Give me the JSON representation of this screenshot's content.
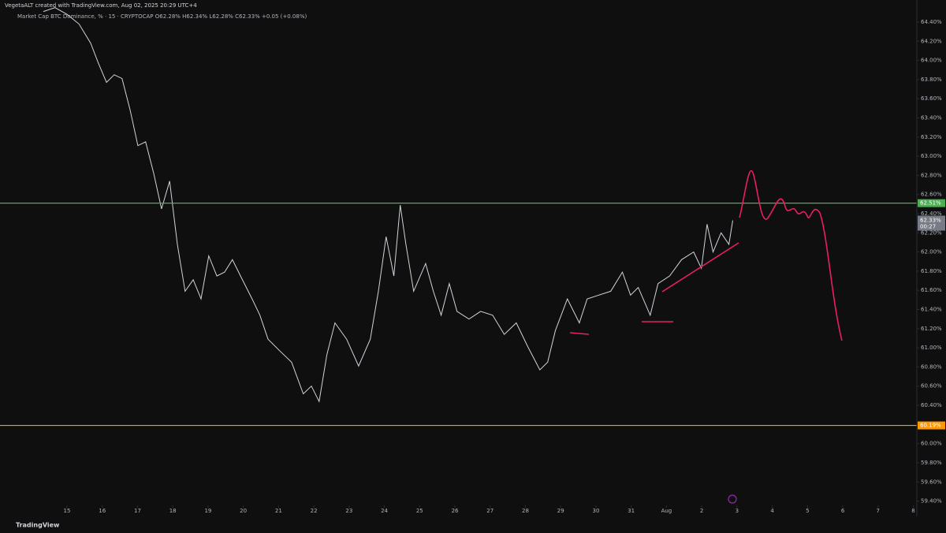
{
  "header": {
    "credit": "VegetaALT created with TradingView.com, Aug 02, 2025 20:29 UTC+4",
    "legend": "Market Cap BTC Dominance, % · 15 · CRYPTOCAP  O62.28% H62.34% L62.28% C62.33% +0.05 (+0.08%)"
  },
  "footer": {
    "brand": "TradingView"
  },
  "chart_data": {
    "type": "line",
    "series": [
      {
        "name": "Market Cap BTC Dominance, %",
        "color": "#d1d4dc",
        "x": [
          -0.67,
          -0.34,
          0,
          0.34,
          0.67,
          0.89,
          1.12,
          1.34,
          1.56,
          1.79,
          2.01,
          2.23,
          2.46,
          2.68,
          2.91,
          3.13,
          3.35,
          3.58,
          3.8,
          4.02,
          4.25,
          4.47,
          4.69,
          4.92,
          5.25,
          5.47,
          5.7,
          6.03,
          6.37,
          6.7,
          6.93,
          7.15,
          7.37,
          7.6,
          7.93,
          8.27,
          8.6,
          8.83,
          9.05,
          9.27,
          9.45,
          9.61,
          9.83,
          10.17,
          10.39,
          10.61,
          10.84,
          11.06,
          11.4,
          11.73,
          12.07,
          12.4,
          12.74,
          13.07,
          13.41,
          13.63,
          13.85,
          14.19,
          14.53,
          14.75,
          15.08,
          15.42,
          15.75,
          15.98,
          16.2,
          16.54,
          16.76,
          17.09,
          17.43,
          17.77,
          17.99,
          18.15,
          18.32,
          18.55,
          18.77,
          18.88
        ],
        "values": [
          64.51,
          64.55,
          64.48,
          64.38,
          64.18,
          63.97,
          63.77,
          63.85,
          63.81,
          63.48,
          63.11,
          63.15,
          62.82,
          62.45,
          62.74,
          62.08,
          61.59,
          61.71,
          61.51,
          61.96,
          61.75,
          61.79,
          61.92,
          61.75,
          61.51,
          61.34,
          61.09,
          60.97,
          60.85,
          60.52,
          60.6,
          60.44,
          60.93,
          61.26,
          61.09,
          60.81,
          61.09,
          61.59,
          62.16,
          61.75,
          62.49,
          62.08,
          61.59,
          61.88,
          61.59,
          61.34,
          61.67,
          61.38,
          61.3,
          61.38,
          61.34,
          61.14,
          61.26,
          61.01,
          60.77,
          60.85,
          61.18,
          61.51,
          61.26,
          61.51,
          61.55,
          61.59,
          61.79,
          61.55,
          61.63,
          61.34,
          61.67,
          61.75,
          61.92,
          62.0,
          61.83,
          62.29,
          62.0,
          62.2,
          62.08,
          62.33
        ]
      }
    ],
    "levels": [
      {
        "value": 62.51,
        "label": "62.51%",
        "color": "#4caf50"
      },
      {
        "value": 60.19,
        "label": "60.19%",
        "color": "#ff9800"
      }
    ],
    "last_price": {
      "value": 62.33,
      "label": "62.33%",
      "countdown": "00:27"
    },
    "xlim": [
      -1.9,
      24.1
    ],
    "xticks": [
      {
        "value": 0,
        "label": "15"
      },
      {
        "value": 1,
        "label": "16"
      },
      {
        "value": 2,
        "label": "17"
      },
      {
        "value": 3,
        "label": "18"
      },
      {
        "value": 4,
        "label": "19"
      },
      {
        "value": 5,
        "label": "20"
      },
      {
        "value": 6,
        "label": "21"
      },
      {
        "value": 7,
        "label": "22"
      },
      {
        "value": 8,
        "label": "23"
      },
      {
        "value": 9,
        "label": "24"
      },
      {
        "value": 10,
        "label": "25"
      },
      {
        "value": 11,
        "label": "26"
      },
      {
        "value": 12,
        "label": "27"
      },
      {
        "value": 13,
        "label": "28"
      },
      {
        "value": 14,
        "label": "29"
      },
      {
        "value": 15,
        "label": "30"
      },
      {
        "value": 16,
        "label": "31"
      },
      {
        "value": 17,
        "label": "Aug"
      },
      {
        "value": 18,
        "label": "2"
      },
      {
        "value": 19,
        "label": "3"
      },
      {
        "value": 20,
        "label": "4"
      },
      {
        "value": 21,
        "label": "5"
      },
      {
        "value": 22,
        "label": "6"
      },
      {
        "value": 23,
        "label": "7"
      },
      {
        "value": 24,
        "label": "8"
      }
    ],
    "ylim": [
      59.24,
      64.63
    ],
    "yticks": [
      {
        "value": 59.4,
        "label": "59.40%"
      },
      {
        "value": 59.6,
        "label": "59.60%"
      },
      {
        "value": 59.8,
        "label": "59.80%"
      },
      {
        "value": 60.0,
        "label": "60.00%"
      },
      {
        "value": 60.2,
        "label": "60.20%"
      },
      {
        "value": 60.4,
        "label": "60.40%"
      },
      {
        "value": 60.6,
        "label": "60.60%"
      },
      {
        "value": 60.8,
        "label": "60.80%"
      },
      {
        "value": 61.0,
        "label": "61.00%"
      },
      {
        "value": 61.2,
        "label": "61.20%"
      },
      {
        "value": 61.4,
        "label": "61.40%"
      },
      {
        "value": 61.6,
        "label": "61.60%"
      },
      {
        "value": 61.8,
        "label": "61.80%"
      },
      {
        "value": 62.0,
        "label": "62.00%"
      },
      {
        "value": 62.2,
        "label": "62.20%"
      },
      {
        "value": 62.4,
        "label": "62.40%"
      },
      {
        "value": 62.6,
        "label": "62.60%"
      },
      {
        "value": 62.8,
        "label": "62.80%"
      },
      {
        "value": 63.0,
        "label": "63.00%"
      },
      {
        "value": 63.2,
        "label": "63.20%"
      },
      {
        "value": 63.4,
        "label": "63.40%"
      },
      {
        "value": 63.6,
        "label": "63.60%"
      },
      {
        "value": 63.8,
        "label": "63.80%"
      },
      {
        "value": 64.0,
        "label": "64.00%"
      },
      {
        "value": 64.2,
        "label": "64.20%"
      },
      {
        "value": 64.4,
        "label": "64.40%"
      }
    ],
    "grid": false
  }
}
